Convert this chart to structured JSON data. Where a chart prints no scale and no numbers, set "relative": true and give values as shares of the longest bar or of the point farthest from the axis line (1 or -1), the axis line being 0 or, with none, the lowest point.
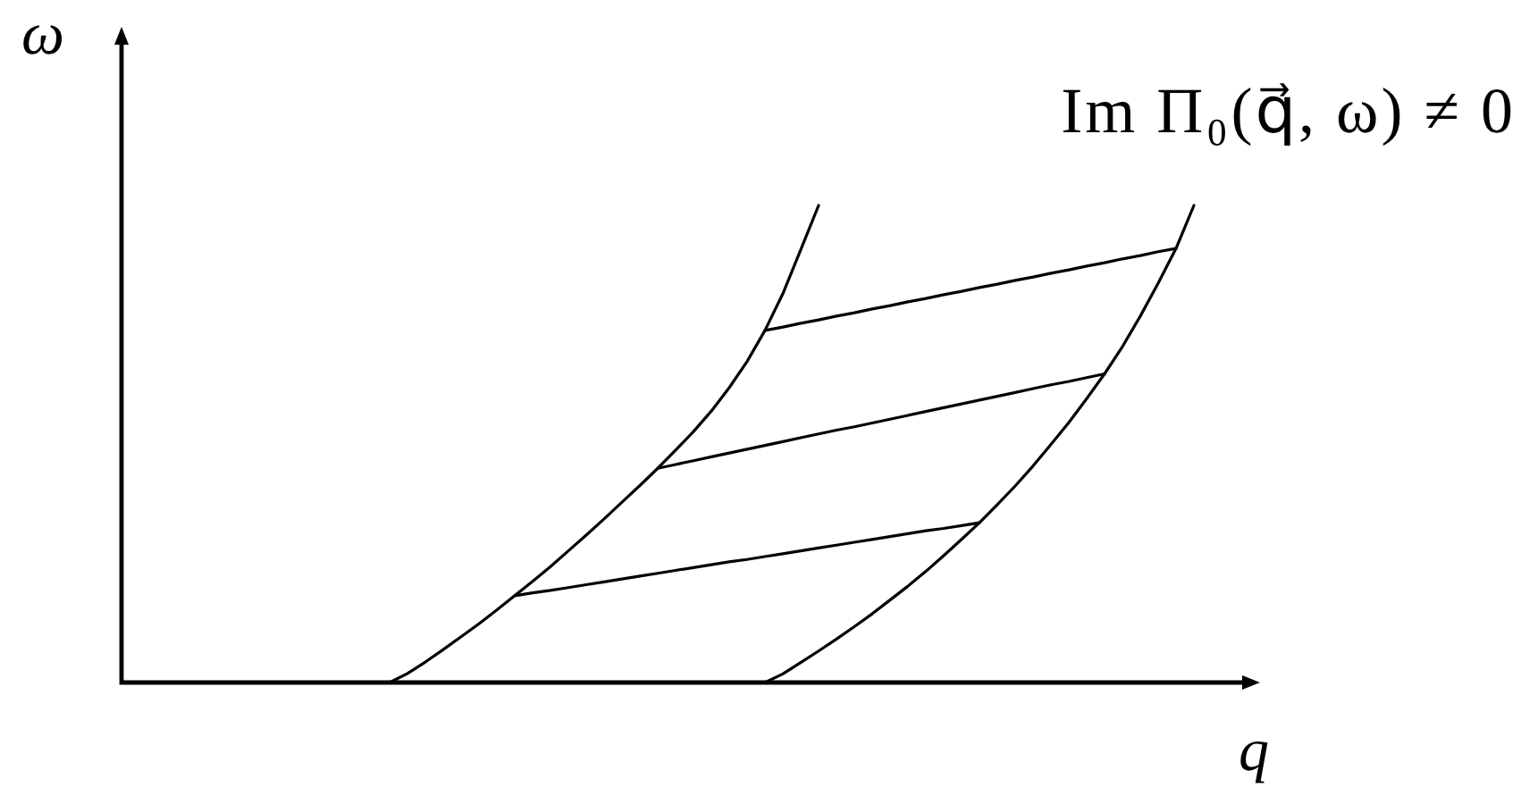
{
  "chart_data": {
    "type": "line",
    "relative": true,
    "xlabel": "q",
    "ylabel": "ω",
    "annotations": [
      "Im Π₀(q⃗, ω) ≠ 0"
    ],
    "marker": "none",
    "line_style": "solid",
    "categories": [
      null,
      null,
      null,
      null,
      null,
      null,
      null,
      null,
      null,
      null,
      null,
      null,
      null,
      null,
      null,
      null,
      null,
      null,
      null,
      null,
      null,
      null,
      null,
      null,
      null,
      null,
      null,
      null,
      null,
      null,
      null,
      null,
      null,
      null,
      null,
      null,
      null,
      null,
      null,
      null,
      null,
      null,
      null,
      null,
      null,
      null,
      null,
      null,
      null,
      null,
      null,
      null,
      null,
      null,
      null,
      null,
      null,
      null,
      null,
      null,
      null,
      null,
      null,
      null
    ],
    "series": [
      {
        "color": "#000000",
        "values": [
          null,
          null,
          null,
          null,
          null,
          null,
          null,
          null,
          null,
          null,
          null,
          null,
          null,
          null,
          null,
          0,
          0.019,
          0.043,
          0.069,
          0.096,
          0.123,
          0.152,
          0.182,
          0.212,
          0.243,
          0.276,
          0.309,
          0.343,
          0.378,
          0.413,
          0.449,
          0.487,
          0.526,
          0.569,
          0.618,
          0.673,
          0.738,
          0.815,
          0.907,
          1,
          null,
          null,
          null,
          null,
          null,
          null,
          null,
          null,
          null,
          null,
          null,
          null,
          null,
          null,
          null,
          null,
          null,
          null,
          null,
          null,
          null,
          null,
          null,
          null
        ]
      },
      {
        "color": "#000000",
        "values": [
          null,
          null,
          null,
          null,
          null,
          null,
          null,
          null,
          null,
          null,
          null,
          null,
          null,
          null,
          null,
          null,
          null,
          null,
          null,
          null,
          null,
          null,
          null,
          null,
          null,
          null,
          null,
          null,
          null,
          null,
          null,
          null,
          null,
          null,
          null,
          null,
          0,
          0.018,
          0.042,
          0.066,
          0.091,
          0.117,
          0.144,
          0.173,
          0.202,
          0.233,
          0.266,
          0.3,
          0.335,
          0.373,
          0.412,
          0.454,
          0.499,
          0.545,
          0.595,
          0.647,
          0.704,
          0.768,
          0.837,
          0.91,
          1,
          null,
          null,
          null
        ]
      },
      {
        "color": "#000000",
        "values": [
          null,
          null,
          null,
          null,
          null,
          null,
          null,
          null,
          null,
          null,
          null,
          null,
          null,
          null,
          null,
          null,
          null,
          null,
          null,
          null,
          null,
          null,
          0.182,
          0.188,
          0.193,
          0.199,
          0.205,
          0.211,
          0.217,
          0.223,
          0.229,
          0.235,
          0.241,
          0.247,
          0.253,
          0.258,
          0.264,
          0.27,
          0.276,
          0.282,
          0.288,
          0.294,
          0.3,
          0.306,
          0.312,
          0.318,
          0.323,
          0.329,
          0.335,
          null,
          null,
          null,
          null,
          null,
          null,
          null,
          null,
          null,
          null,
          null,
          null,
          null,
          null,
          null
        ]
      },
      {
        "color": "#000000",
        "values": [
          null,
          null,
          null,
          null,
          null,
          null,
          null,
          null,
          null,
          null,
          null,
          null,
          null,
          null,
          null,
          null,
          null,
          null,
          null,
          null,
          null,
          null,
          null,
          null,
          null,
          null,
          null,
          null,
          null,
          null,
          0.449,
          0.457,
          0.465,
          0.473,
          0.481,
          0.489,
          0.497,
          0.505,
          0.513,
          0.521,
          0.529,
          0.536,
          0.544,
          0.552,
          0.56,
          0.568,
          0.576,
          0.584,
          0.592,
          0.6,
          0.608,
          0.616,
          0.624,
          0.631,
          0.639,
          0.647,
          null,
          null,
          null,
          null,
          null,
          null,
          null,
          null
        ]
      },
      {
        "color": "#000000",
        "values": [
          null,
          null,
          null,
          null,
          null,
          null,
          null,
          null,
          null,
          null,
          null,
          null,
          null,
          null,
          null,
          null,
          null,
          null,
          null,
          null,
          null,
          null,
          null,
          null,
          null,
          null,
          null,
          null,
          null,
          null,
          null,
          null,
          null,
          null,
          null,
          null,
          0.738,
          0.745,
          0.753,
          0.76,
          0.768,
          0.775,
          0.783,
          0.79,
          0.798,
          0.805,
          0.813,
          0.82,
          0.828,
          0.835,
          0.843,
          0.85,
          0.858,
          0.865,
          0.873,
          0.88,
          0.888,
          0.895,
          0.903,
          0.91,
          null,
          null,
          null,
          null
        ]
      }
    ]
  }
}
